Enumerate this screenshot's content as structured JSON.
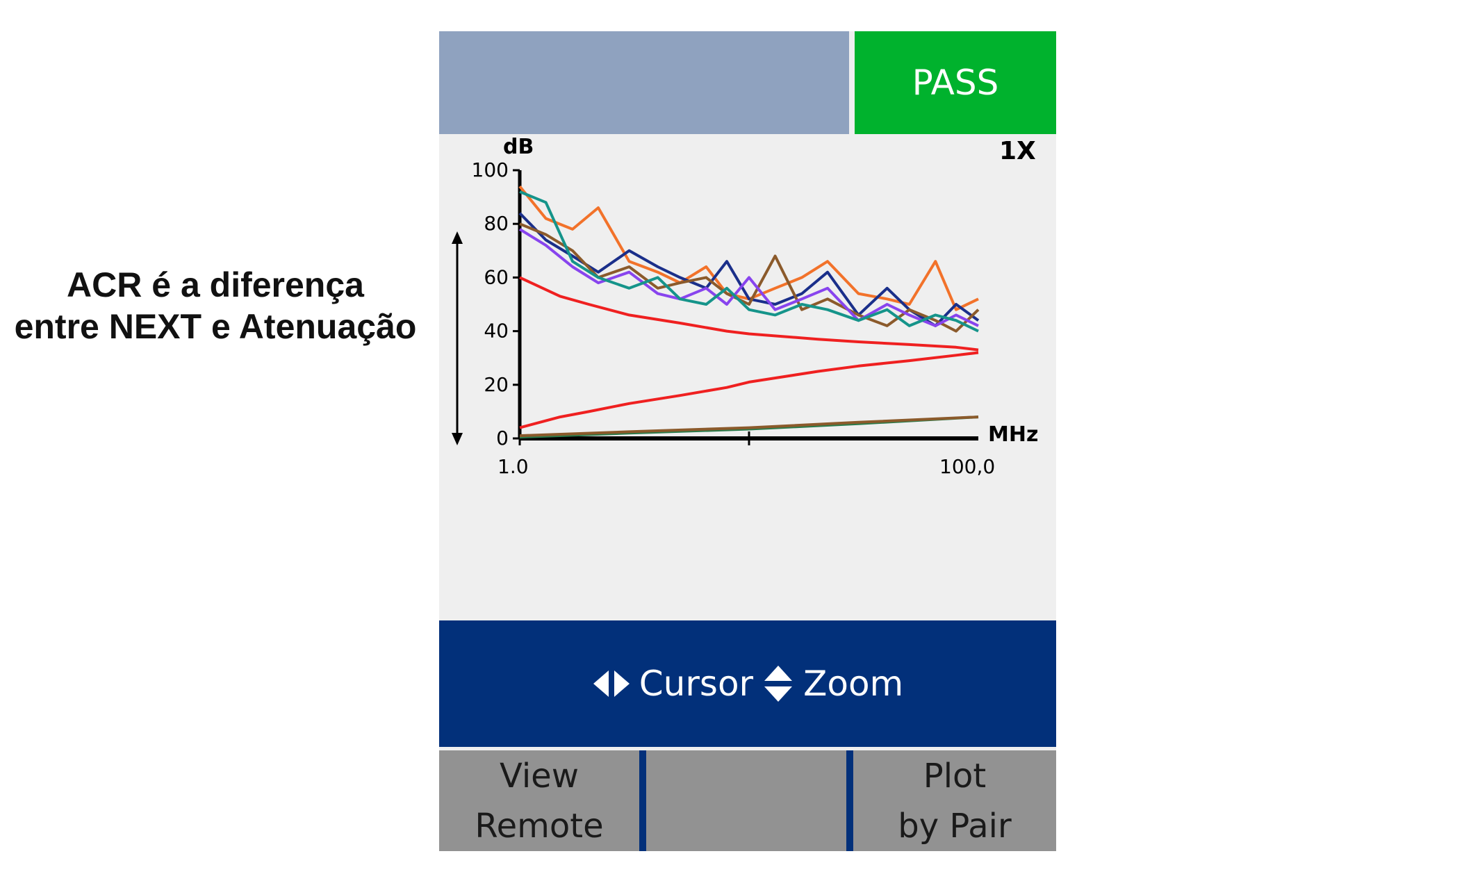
{
  "caption": {
    "line1": "ACR é a diferença",
    "line2": "entre NEXT e Atenuação"
  },
  "status": {
    "result": "PASS",
    "color": "#00b22d"
  },
  "chart": {
    "zoom_label": "1X"
  },
  "bottom_bar": {
    "cursor_label": "Cursor",
    "zoom_label": "Zoom",
    "cursor_icon": "left-right-arrows-icon",
    "zoom_icon": "up-down-arrows-icon"
  },
  "softkeys": [
    {
      "line1": "View",
      "line2": "Remote"
    },
    {
      "line1": "",
      "line2": ""
    },
    {
      "line1": "Plot",
      "line2": "by Pair"
    }
  ],
  "chart_data": {
    "type": "line",
    "ylabel": "dB",
    "xlabel": "MHz",
    "ylim": [
      0,
      100
    ],
    "yticks": [
      "0",
      "20",
      "40",
      "60",
      "80",
      "100"
    ],
    "xticks": [
      "1.0",
      "100,0"
    ],
    "x_scale": "log",
    "xlim": [
      1,
      100
    ],
    "annotation": "ACR range arrow between NEXT limit and attenuation",
    "series": [
      {
        "color": "#ef2020",
        "x": [
          1,
          1.5,
          2,
          3,
          5,
          8,
          10,
          20,
          30,
          50,
          80,
          100
        ],
        "y": [
          60,
          53,
          50,
          46,
          43,
          40,
          39,
          37,
          36,
          35,
          34,
          33
        ]
      },
      {
        "color": "#ef2020",
        "x": [
          1,
          1.5,
          2,
          3,
          5,
          8,
          10,
          20,
          30,
          50,
          80,
          100
        ],
        "y": [
          4,
          8,
          10,
          13,
          16,
          19,
          21,
          25,
          27,
          29,
          31,
          32
        ]
      },
      {
        "color": "#f2722a",
        "x": [
          1,
          1.3,
          1.7,
          2.2,
          3,
          4,
          5,
          6.5,
          8,
          10,
          13,
          17,
          22,
          30,
          40,
          50,
          65,
          80,
          100
        ],
        "y": [
          94,
          82,
          78,
          86,
          66,
          62,
          58,
          64,
          54,
          52,
          56,
          60,
          66,
          54,
          52,
          50,
          66,
          48,
          52
        ]
      },
      {
        "color": "#1a2f8a",
        "x": [
          1,
          1.3,
          1.7,
          2.2,
          3,
          4,
          5,
          6.5,
          8,
          10,
          13,
          17,
          22,
          30,
          40,
          50,
          65,
          80,
          100
        ],
        "y": [
          84,
          74,
          68,
          62,
          70,
          64,
          60,
          56,
          66,
          52,
          50,
          54,
          62,
          46,
          56,
          48,
          42,
          50,
          44
        ]
      },
      {
        "color": "#8b5a2b",
        "x": [
          1,
          1.3,
          1.7,
          2.2,
          3,
          4,
          5,
          6.5,
          8,
          10,
          13,
          17,
          22,
          30,
          40,
          50,
          65,
          80,
          100
        ],
        "y": [
          80,
          76,
          70,
          60,
          64,
          56,
          58,
          60,
          54,
          50,
          68,
          48,
          52,
          46,
          42,
          48,
          44,
          40,
          48
        ]
      },
      {
        "color": "#8844ee",
        "x": [
          1,
          1.3,
          1.7,
          2.2,
          3,
          4,
          5,
          6.5,
          8,
          10,
          13,
          17,
          22,
          30,
          40,
          50,
          65,
          80,
          100
        ],
        "y": [
          78,
          72,
          64,
          58,
          62,
          54,
          52,
          56,
          50,
          60,
          48,
          52,
          56,
          44,
          50,
          46,
          42,
          46,
          42
        ]
      },
      {
        "color": "#15948a",
        "x": [
          1,
          1.3,
          1.7,
          2.2,
          3,
          4,
          5,
          6.5,
          8,
          10,
          13,
          17,
          22,
          30,
          40,
          50,
          65,
          80,
          100
        ],
        "y": [
          92,
          88,
          66,
          60,
          56,
          60,
          52,
          50,
          56,
          48,
          46,
          50,
          48,
          44,
          48,
          42,
          46,
          44,
          40
        ]
      },
      {
        "color": "#2a7a4a",
        "x": [
          1,
          3,
          10,
          30,
          100
        ],
        "y": [
          0.5,
          2,
          3.5,
          5.5,
          8
        ]
      },
      {
        "color": "#8b5a2b",
        "x": [
          1,
          3,
          10,
          30,
          100
        ],
        "y": [
          1,
          2.5,
          4,
          6,
          8
        ]
      }
    ]
  }
}
